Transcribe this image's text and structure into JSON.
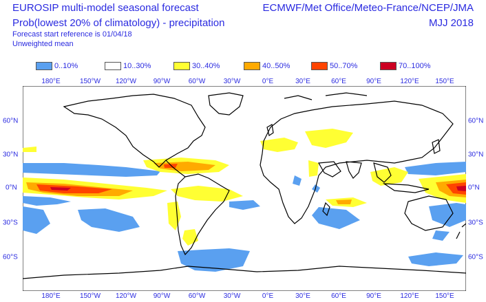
{
  "header": {
    "title_line1": "EUROSIP multi-model seasonal forecast",
    "title_line2": "Prob(lowest 20% of climatology) - precipitation",
    "subtitle1": "Forecast start reference is 01/04/18",
    "subtitle2": "Unweighted mean",
    "org": "ECMWF/Met Office/Meteo-France/NCEP/JMA",
    "period": "MJJ 2018"
  },
  "legend": [
    {
      "label": "0..10%",
      "color": "#5aa0f0"
    },
    {
      "label": "10..30%",
      "color": "#ffffff"
    },
    {
      "label": "30..40%",
      "color": "#ffff33"
    },
    {
      "label": "40..50%",
      "color": "#ffaa00"
    },
    {
      "label": "50..70%",
      "color": "#ff4400"
    },
    {
      "label": "70..100%",
      "color": "#cc0022"
    }
  ],
  "axes": {
    "lon_top": [
      "180°E",
      "150°W",
      "120°W",
      "90°W",
      "60°W",
      "30°W",
      "0°E",
      "30°E",
      "60°E",
      "90°E",
      "120°E",
      "150°E"
    ],
    "lon_bottom": [
      "180°E",
      "150°W",
      "120°W",
      "90°W",
      "60°W",
      "30°W",
      "0°E",
      "30°E",
      "60°E",
      "90°E",
      "120°E",
      "150°E"
    ],
    "lat_right": [
      "60°N",
      "30°N",
      "0°N",
      "30°S",
      "60°S"
    ]
  },
  "map": {
    "projection": "equirectangular",
    "center_longitude": 0,
    "land_color": "#ffffff",
    "coast_color": "#000000",
    "colors": {
      "low": "#5aa0f0",
      "p30": "#ffff33",
      "p40": "#ffaa00",
      "p50": "#ff4400",
      "p70": "#cc0022"
    }
  }
}
